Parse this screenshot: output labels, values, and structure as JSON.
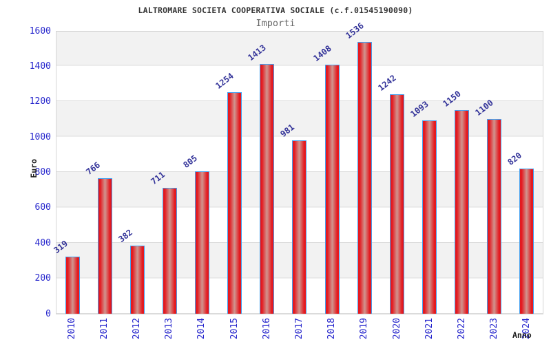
{
  "chart_data": {
    "type": "bar",
    "title": "LALTROMARE SOCIETA COOPERATIVA SOCIALE (c.f.01545190090)",
    "subtitle": "Importi",
    "xlabel": "Anno",
    "ylabel": "Euro",
    "categories": [
      "2010",
      "2011",
      "2012",
      "2013",
      "2014",
      "2015",
      "2016",
      "2017",
      "2018",
      "2019",
      "2020",
      "2021",
      "2022",
      "2023",
      "2024"
    ],
    "values": [
      319,
      766,
      382,
      711,
      805,
      1254,
      1413,
      981,
      1408,
      1536,
      1242,
      1093,
      1150,
      1100,
      820
    ],
    "ylim": [
      0,
      1600
    ],
    "yticks": [
      0,
      200,
      400,
      600,
      800,
      1000,
      1200,
      1400,
      1600
    ],
    "grid": "horizontal gridlines every 200 with alternating gray/white bands",
    "legend": "none",
    "bar_value_labels": "shown above bars, rotated ~38deg",
    "colors": {
      "bar_fill_edge": "#e4191f",
      "bar_fill_center": "#d0958f",
      "bar_border": "#45a1f0",
      "axis_tick_labels": "#2424cc",
      "value_labels": "#333399",
      "band_gray": "#f2f2f2",
      "gridline": "#dcdcdc",
      "plot_border": "#d4d4d4",
      "title_text": "#333333",
      "subtitle_text": "#666666",
      "axis_title_text": "#1a1a1a"
    }
  }
}
